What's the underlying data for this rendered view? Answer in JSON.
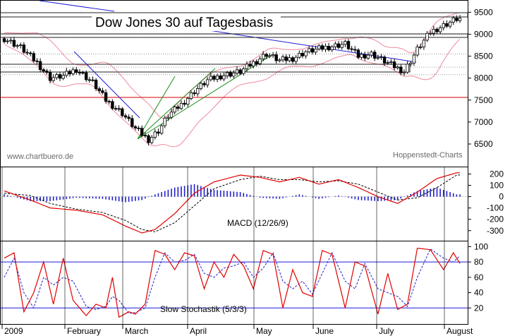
{
  "chart_data": {
    "type": "candlestick",
    "title": "Dow Jones 30 auf Tagesbasis",
    "watermark_left": "www.chartbuero.de",
    "watermark_right": "Hoppenstedt-Charts",
    "x_labels": [
      "2009",
      "February",
      "March",
      "April",
      "May",
      "June",
      "July",
      "August"
    ],
    "price_panel": {
      "y_ticks": [
        6500,
        7000,
        7500,
        8000,
        8500,
        9000,
        9500
      ],
      "ylim": [
        6050,
        9650
      ],
      "support_line": 7560,
      "close_anchors": [
        [
          0,
          8900
        ],
        [
          5,
          8700
        ],
        [
          10,
          8350
        ],
        [
          14,
          8000
        ],
        [
          18,
          8050
        ],
        [
          22,
          8200
        ],
        [
          27,
          7900
        ],
        [
          31,
          7500
        ],
        [
          36,
          7200
        ],
        [
          40,
          6850
        ],
        [
          44,
          6600
        ],
        [
          47,
          6800
        ],
        [
          50,
          7150
        ],
        [
          54,
          7400
        ],
        [
          58,
          7700
        ],
        [
          62,
          7950
        ],
        [
          66,
          8050
        ],
        [
          72,
          8150
        ],
        [
          76,
          8350
        ],
        [
          80,
          8550
        ],
        [
          84,
          8400
        ],
        [
          88,
          8450
        ],
        [
          92,
          8600
        ],
        [
          98,
          8700
        ],
        [
          104,
          8780
        ],
        [
          108,
          8500
        ],
        [
          112,
          8550
        ],
        [
          118,
          8300
        ],
        [
          122,
          8150
        ],
        [
          126,
          8650
        ],
        [
          130,
          9050
        ],
        [
          134,
          9200
        ],
        [
          138,
          9350
        ]
      ]
    },
    "macd_panel": {
      "label": "MACD (12/26/9)",
      "y_ticks": [
        -300,
        -200,
        -100,
        0,
        100,
        200
      ],
      "ylim": [
        -370,
        240
      ],
      "macd_anchors": [
        [
          0,
          50
        ],
        [
          8,
          -30
        ],
        [
          14,
          -100
        ],
        [
          22,
          -120
        ],
        [
          30,
          -160
        ],
        [
          37,
          -260
        ],
        [
          42,
          -320
        ],
        [
          46,
          -290
        ],
        [
          52,
          -150
        ],
        [
          58,
          30
        ],
        [
          64,
          130
        ],
        [
          72,
          190
        ],
        [
          78,
          170
        ],
        [
          84,
          130
        ],
        [
          90,
          170
        ],
        [
          96,
          110
        ],
        [
          102,
          150
        ],
        [
          108,
          80
        ],
        [
          114,
          0
        ],
        [
          120,
          -60
        ],
        [
          126,
          40
        ],
        [
          132,
          160
        ],
        [
          138,
          210
        ]
      ],
      "signal_anchors": [
        [
          0,
          30
        ],
        [
          8,
          10
        ],
        [
          14,
          -60
        ],
        [
          22,
          -110
        ],
        [
          30,
          -140
        ],
        [
          37,
          -210
        ],
        [
          42,
          -290
        ],
        [
          46,
          -310
        ],
        [
          52,
          -230
        ],
        [
          58,
          -80
        ],
        [
          64,
          70
        ],
        [
          72,
          150
        ],
        [
          78,
          180
        ],
        [
          84,
          150
        ],
        [
          90,
          150
        ],
        [
          96,
          130
        ],
        [
          102,
          140
        ],
        [
          108,
          110
        ],
        [
          114,
          40
        ],
        [
          120,
          -30
        ],
        [
          126,
          -10
        ],
        [
          132,
          80
        ],
        [
          138,
          190
        ]
      ]
    },
    "stoch_panel": {
      "label": "Slow Stochastik (5/3/3)",
      "y_ticks": [
        20,
        40,
        60,
        80,
        100
      ],
      "ylim": [
        0,
        105
      ],
      "ref_lines": [
        20,
        80
      ],
      "k_anchors": [
        [
          0,
          85
        ],
        [
          3,
          92
        ],
        [
          6,
          15
        ],
        [
          9,
          40
        ],
        [
          12,
          80
        ],
        [
          15,
          25
        ],
        [
          18,
          85
        ],
        [
          21,
          30
        ],
        [
          25,
          10
        ],
        [
          28,
          25
        ],
        [
          31,
          20
        ],
        [
          33,
          60
        ],
        [
          35,
          8
        ],
        [
          38,
          15
        ],
        [
          40,
          12
        ],
        [
          43,
          25
        ],
        [
          46,
          95
        ],
        [
          49,
          90
        ],
        [
          52,
          70
        ],
        [
          55,
          92
        ],
        [
          58,
          88
        ],
        [
          61,
          45
        ],
        [
          64,
          80
        ],
        [
          67,
          60
        ],
        [
          70,
          90
        ],
        [
          73,
          75
        ],
        [
          76,
          45
        ],
        [
          79,
          95
        ],
        [
          82,
          90
        ],
        [
          85,
          20
        ],
        [
          88,
          70
        ],
        [
          91,
          40
        ],
        [
          94,
          35
        ],
        [
          97,
          95
        ],
        [
          100,
          90
        ],
        [
          104,
          20
        ],
        [
          107,
          80
        ],
        [
          110,
          75
        ],
        [
          114,
          12
        ],
        [
          117,
          65
        ],
        [
          120,
          18
        ],
        [
          123,
          25
        ],
        [
          126,
          98
        ],
        [
          130,
          96
        ],
        [
          134,
          70
        ],
        [
          137,
          92
        ],
        [
          139,
          78
        ]
      ],
      "d_anchors": [
        [
          0,
          60
        ],
        [
          3,
          85
        ],
        [
          6,
          40
        ],
        [
          9,
          20
        ],
        [
          12,
          60
        ],
        [
          15,
          50
        ],
        [
          18,
          60
        ],
        [
          21,
          55
        ],
        [
          25,
          22
        ],
        [
          28,
          18
        ],
        [
          31,
          22
        ],
        [
          33,
          35
        ],
        [
          35,
          30
        ],
        [
          38,
          13
        ],
        [
          40,
          14
        ],
        [
          43,
          20
        ],
        [
          46,
          60
        ],
        [
          49,
          92
        ],
        [
          52,
          80
        ],
        [
          55,
          82
        ],
        [
          58,
          90
        ],
        [
          61,
          65
        ],
        [
          64,
          60
        ],
        [
          67,
          72
        ],
        [
          70,
          75
        ],
        [
          73,
          80
        ],
        [
          76,
          60
        ],
        [
          79,
          72
        ],
        [
          82,
          92
        ],
        [
          85,
          55
        ],
        [
          88,
          45
        ],
        [
          91,
          55
        ],
        [
          94,
          38
        ],
        [
          97,
          65
        ],
        [
          100,
          92
        ],
        [
          104,
          55
        ],
        [
          107,
          45
        ],
        [
          110,
          78
        ],
        [
          114,
          45
        ],
        [
          117,
          40
        ],
        [
          120,
          35
        ],
        [
          123,
          22
        ],
        [
          126,
          60
        ],
        [
          130,
          97
        ],
        [
          134,
          85
        ],
        [
          137,
          80
        ],
        [
          139,
          88
        ]
      ]
    }
  }
}
